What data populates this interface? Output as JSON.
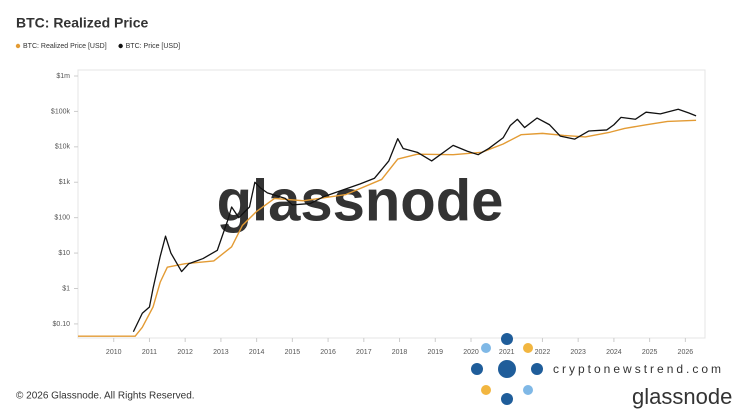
{
  "chart_data": {
    "type": "line",
    "title": "BTC: Realized Price",
    "log_y": true,
    "legend": "top-left",
    "xlim": [
      2009.0,
      2026.55
    ],
    "xticks": [
      2010,
      2011,
      2012,
      2013,
      2014,
      2015,
      2016,
      2017,
      2018,
      2019,
      2020,
      2021,
      2022,
      2023,
      2024,
      2025,
      2026
    ],
    "ylim": [
      0.04,
      1000000
    ],
    "yticks": [
      {
        "value": 0.1,
        "label": "$0.10"
      },
      {
        "value": 1,
        "label": "$1"
      },
      {
        "value": 10,
        "label": "$10"
      },
      {
        "value": 100,
        "label": "$100"
      },
      {
        "value": 1000,
        "label": "$1k"
      },
      {
        "value": 10000,
        "label": "$10k"
      },
      {
        "value": 100000,
        "label": "$100k"
      },
      {
        "value": 1000000,
        "label": "$1m"
      }
    ],
    "series": [
      {
        "name": "BTC: Realized Price [USD]",
        "color": "#e39b34",
        "x": [
          2009.0,
          2010.6,
          2010.8,
          2011.1,
          2011.3,
          2011.5,
          2012.0,
          2012.8,
          2013.3,
          2013.6,
          2014.0,
          2014.5,
          2015.3,
          2016.5,
          2017.5,
          2017.95,
          2018.5,
          2019.5,
          2020.3,
          2020.9,
          2021.4,
          2022.0,
          2022.6,
          2023.2,
          2023.9,
          2024.3,
          2024.9,
          2025.5,
          2026.3
        ],
        "values": [
          0.045,
          0.045,
          0.08,
          0.3,
          1.5,
          4,
          5,
          6,
          15,
          60,
          150,
          350,
          300,
          450,
          1200,
          4500,
          6200,
          6000,
          7000,
          12000,
          22000,
          24000,
          21000,
          19000,
          26000,
          33000,
          42000,
          52000,
          56000
        ]
      },
      {
        "name": "BTC: Price [USD]",
        "color": "#111111",
        "x": [
          2010.55,
          2010.8,
          2011.0,
          2011.1,
          2011.3,
          2011.45,
          2011.6,
          2011.9,
          2012.1,
          2012.5,
          2012.9,
          2013.2,
          2013.3,
          2013.5,
          2013.8,
          2013.95,
          2014.1,
          2014.3,
          2014.8,
          2015.0,
          2015.5,
          2015.9,
          2016.5,
          2016.9,
          2017.3,
          2017.7,
          2017.95,
          2018.1,
          2018.5,
          2018.9,
          2019.5,
          2019.9,
          2020.2,
          2020.5,
          2020.9,
          2021.1,
          2021.3,
          2021.5,
          2021.85,
          2022.2,
          2022.5,
          2022.9,
          2023.3,
          2023.8,
          2024.0,
          2024.2,
          2024.6,
          2024.9,
          2025.3,
          2025.8,
          2026.1,
          2026.3
        ],
        "values": [
          0.06,
          0.2,
          0.3,
          1,
          8,
          30,
          10,
          3,
          5,
          7,
          12,
          90,
          200,
          100,
          200,
          1000,
          700,
          500,
          350,
          230,
          250,
          400,
          650,
          900,
          1300,
          4000,
          17000,
          9000,
          7000,
          4000,
          11000,
          7500,
          6000,
          9000,
          18000,
          40000,
          60000,
          35000,
          65000,
          42000,
          20000,
          16500,
          28000,
          30000,
          42000,
          68000,
          60000,
          95000,
          85000,
          115000,
          90000,
          75000
        ]
      }
    ]
  },
  "watermark": "glassnode",
  "footer": "© 2026 Glassnode. All Rights Reserved.",
  "brand": "glassnode",
  "site": "cryptonewstrend.com"
}
